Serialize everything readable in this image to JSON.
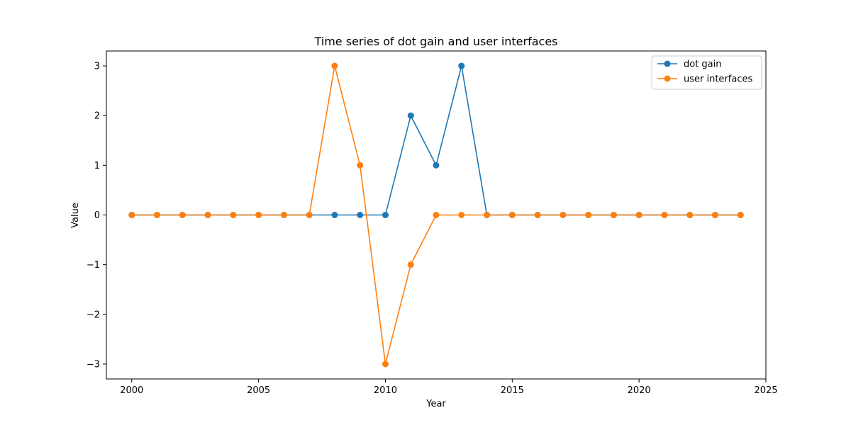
{
  "chart_data": {
    "type": "line",
    "title": "Time series of dot gain and user interfaces",
    "xlabel": "Year",
    "ylabel": "Value",
    "xlim": [
      1999,
      2025
    ],
    "ylim": [
      -3.3,
      3.3
    ],
    "xticks": [
      2000,
      2005,
      2010,
      2015,
      2020,
      2025
    ],
    "yticks": [
      -3,
      -2,
      -1,
      0,
      1,
      2,
      3
    ],
    "ytick_labels": [
      "−3",
      "−2",
      "−1",
      "0",
      "1",
      "2",
      "3"
    ],
    "grid": false,
    "legend_position": "top-right",
    "x": [
      2000,
      2001,
      2002,
      2003,
      2004,
      2005,
      2006,
      2007,
      2008,
      2009,
      2010,
      2011,
      2012,
      2013,
      2014,
      2015,
      2016,
      2017,
      2018,
      2019,
      2020,
      2021,
      2022,
      2023,
      2024
    ],
    "series": [
      {
        "name": "dot gain",
        "color": "#1f77b4",
        "values": [
          0,
          0,
          0,
          0,
          0,
          0,
          0,
          0,
          0,
          0,
          0,
          2,
          1,
          3,
          0,
          0,
          0,
          0,
          0,
          0,
          0,
          0,
          0,
          0,
          0
        ]
      },
      {
        "name": "user interfaces",
        "color": "#ff7f0e",
        "values": [
          0,
          0,
          0,
          0,
          0,
          0,
          0,
          0,
          3,
          1,
          -3,
          -1,
          0,
          0,
          0,
          0,
          0,
          0,
          0,
          0,
          0,
          0,
          0,
          0,
          0
        ]
      }
    ]
  }
}
